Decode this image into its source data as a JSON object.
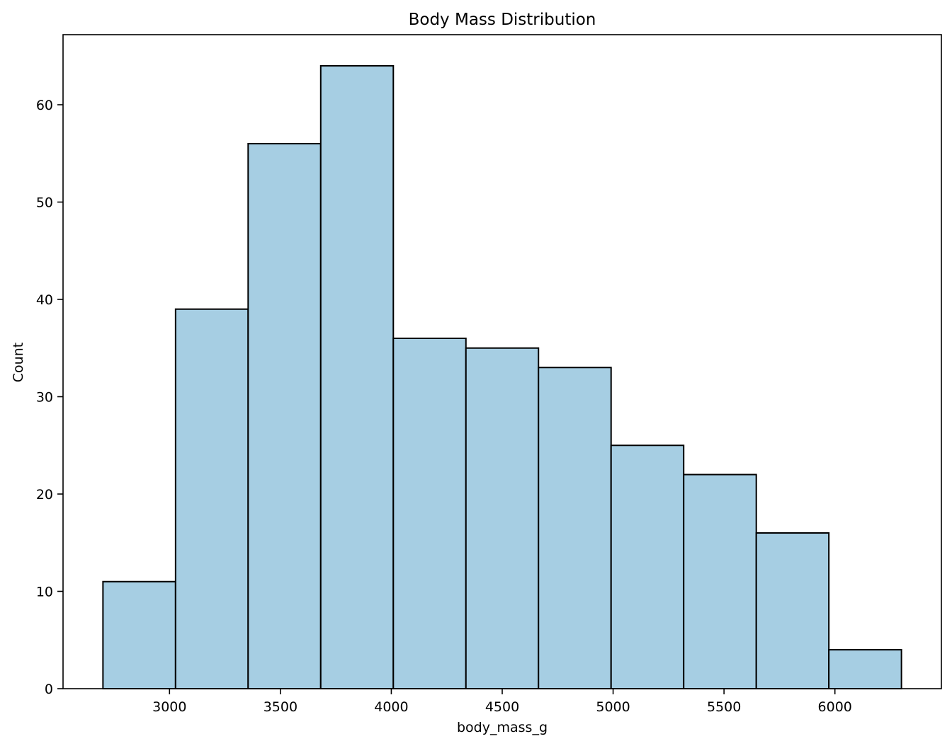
{
  "chart_data": {
    "type": "bar",
    "title": "Body Mass Distribution",
    "xlabel": "body_mass_g",
    "ylabel": "Count",
    "bins": [
      {
        "start": 2700,
        "end": 3027.3,
        "count": 11
      },
      {
        "start": 3027.3,
        "end": 3354.5,
        "count": 39
      },
      {
        "start": 3354.5,
        "end": 3681.8,
        "count": 56
      },
      {
        "start": 3681.8,
        "end": 4009.1,
        "count": 64
      },
      {
        "start": 4009.1,
        "end": 4336.4,
        "count": 36
      },
      {
        "start": 4336.4,
        "end": 4663.6,
        "count": 35
      },
      {
        "start": 4663.6,
        "end": 4990.9,
        "count": 33
      },
      {
        "start": 4990.9,
        "end": 5318.2,
        "count": 25
      },
      {
        "start": 5318.2,
        "end": 5645.5,
        "count": 22
      },
      {
        "start": 5645.5,
        "end": 5972.7,
        "count": 16
      },
      {
        "start": 5972.7,
        "end": 6300,
        "count": 4
      }
    ],
    "xlim": [
      2520,
      6480
    ],
    "ylim": [
      0,
      67.2
    ],
    "xticks": [
      3000,
      3500,
      4000,
      4500,
      5000,
      5500,
      6000
    ],
    "yticks": [
      0,
      10,
      20,
      30,
      40,
      50,
      60
    ],
    "grid": false,
    "colors": {
      "bar_fill": "#a6cee3",
      "bar_edge": "#000000"
    }
  }
}
